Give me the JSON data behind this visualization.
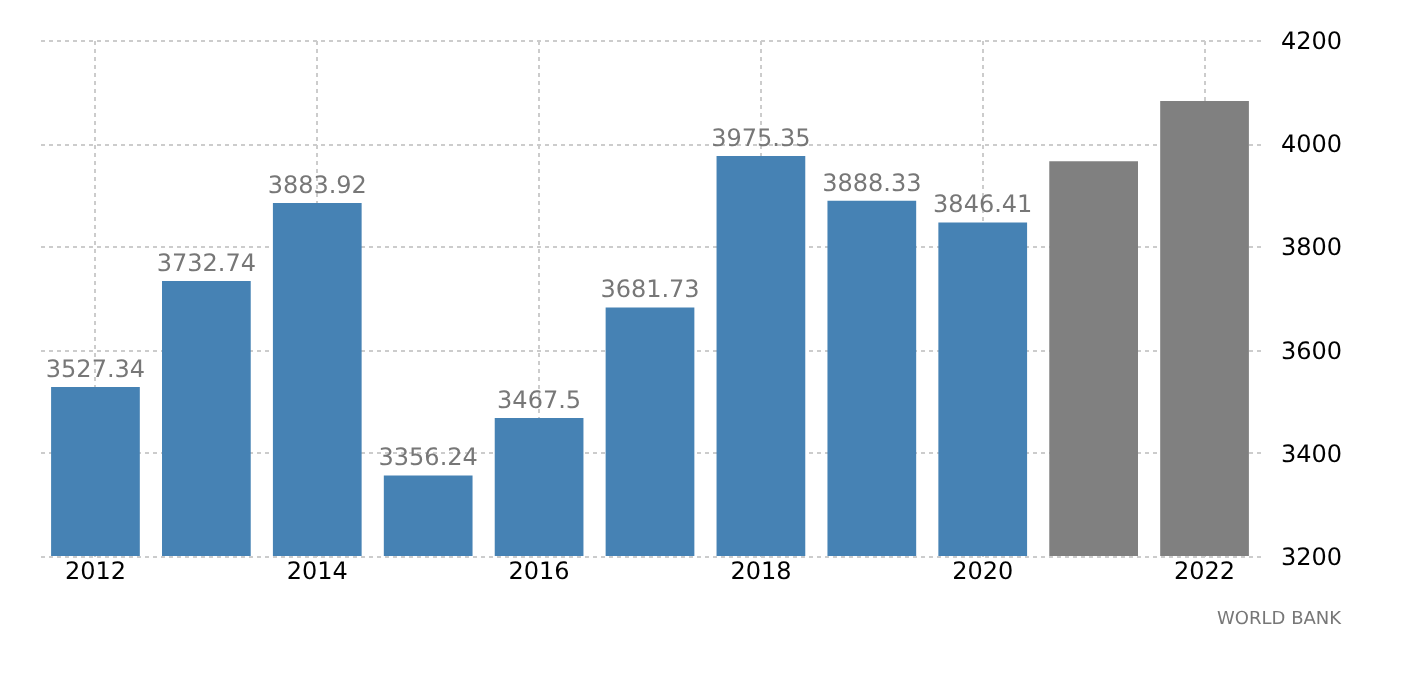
{
  "chart_data": {
    "type": "bar",
    "categories": [
      "2012",
      null,
      "2014",
      null,
      "2016",
      null,
      "2018",
      null,
      "2020",
      null,
      "2022"
    ],
    "values": [
      3527.34,
      3732.74,
      3883.92,
      3356.24,
      3467.5,
      3681.73,
      3975.35,
      3888.33,
      3846.41,
      3965,
      4082
    ],
    "value_labels": [
      "3527.34",
      "3732.74",
      "3883.92",
      "3356.24",
      "3467.5",
      "3681.73",
      "3975.35",
      "3888.33",
      "3846.41",
      null,
      null
    ],
    "colors": [
      "#4682b4",
      "#4682b4",
      "#4682b4",
      "#4682b4",
      "#4682b4",
      "#4682b4",
      "#4682b4",
      "#4682b4",
      "#4682b4",
      "#808080",
      "#808080"
    ],
    "ylim": [
      3200,
      4200
    ],
    "yticks": [
      3200,
      3400,
      3600,
      3800,
      4000,
      4200
    ],
    "grid": true,
    "annotations": [
      "WORLD BANK"
    ]
  }
}
